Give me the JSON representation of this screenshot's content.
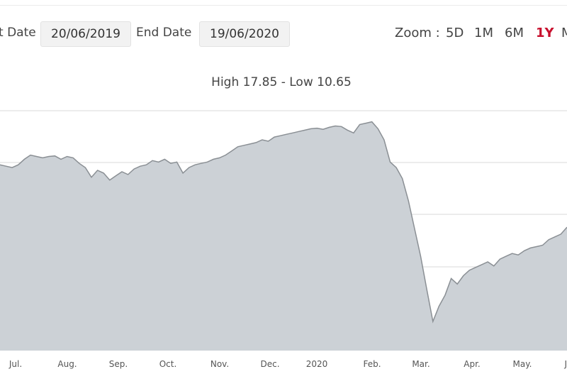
{
  "controls": {
    "start_label": "t Date",
    "start_value": "20/06/2019",
    "end_label": "End Date",
    "end_value": "19/06/2020",
    "zoom_label": "Zoom :",
    "zoom_options": [
      "5D",
      "1M",
      "6M",
      "1Y",
      "M"
    ],
    "zoom_active": "1Y"
  },
  "colors": {
    "area": "#ccd1d6",
    "line": "#8a8f94",
    "grid": "#d9d9d9",
    "active": "#c8102e"
  },
  "chart_data": {
    "type": "area",
    "title": "",
    "subtitle": "High 17.85 - Low 10.65",
    "xlabel": "",
    "ylabel": "",
    "y_range": [
      9.6,
      18.25
    ],
    "grid": "horizontal",
    "x_ticks": [
      "Jul.",
      "Aug.",
      "Sep.",
      "Oct.",
      "Nov.",
      "Dec.",
      "2020",
      "Feb.",
      "Mar.",
      "Apr.",
      "May.",
      "J"
    ],
    "series": [
      {
        "values": [
          16.3,
          16.25,
          16.2,
          16.3,
          16.5,
          16.65,
          16.6,
          16.55,
          16.6,
          16.62,
          16.5,
          16.6,
          16.55,
          16.35,
          16.2,
          15.85,
          16.1,
          16.0,
          15.75,
          15.9,
          16.05,
          15.95,
          16.15,
          16.25,
          16.3,
          16.45,
          16.4,
          16.5,
          16.35,
          16.4,
          16.0,
          16.2,
          16.3,
          16.35,
          16.4,
          16.5,
          16.55,
          16.65,
          16.8,
          16.95,
          17.0,
          17.05,
          17.1,
          17.2,
          17.15,
          17.3,
          17.35,
          17.4,
          17.45,
          17.5,
          17.55,
          17.6,
          17.62,
          17.58,
          17.65,
          17.7,
          17.68,
          17.55,
          17.45,
          17.75,
          17.8,
          17.85,
          17.6,
          17.2,
          16.4,
          16.2,
          15.8,
          15.0,
          14.0,
          13.0,
          11.8,
          10.65,
          11.2,
          11.6,
          12.2,
          12.0,
          12.3,
          12.5,
          12.6,
          12.7,
          12.8,
          12.65,
          12.9,
          13.0,
          13.1,
          13.05,
          13.2,
          13.3,
          13.35,
          13.4,
          13.6,
          13.7,
          13.8,
          14.05
        ]
      }
    ]
  }
}
